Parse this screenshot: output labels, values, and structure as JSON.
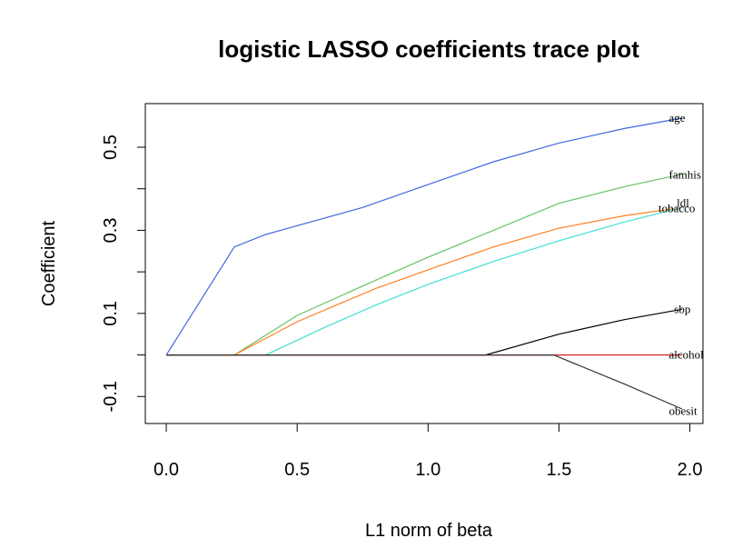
{
  "chart_data": {
    "type": "line",
    "title": "logistic LASSO coefficients trace plot",
    "xlabel": "L1 norm of beta",
    "ylabel": "Coefficient",
    "xlim": [
      -0.08,
      2.05
    ],
    "ylim": [
      -0.165,
      0.605
    ],
    "xticks": [
      0,
      0.5,
      1,
      1.5,
      2
    ],
    "xtick_labels": [
      "0.0",
      "0.5",
      "1.0",
      "1.5",
      "2.0"
    ],
    "yticks": [
      -0.1,
      0,
      0.1,
      0.2,
      0.3,
      0.4,
      0.5
    ],
    "ytick_labels": [
      "-0.1",
      "",
      "0.1",
      "",
      "0.3",
      "",
      "0.5"
    ],
    "grid": false,
    "legend": "none",
    "series": [
      {
        "name": "age",
        "color": "#4169e1",
        "points": [
          [
            0,
            0
          ],
          [
            0.26,
            0.26
          ],
          [
            0.38,
            0.29
          ],
          [
            0.75,
            0.355
          ],
          [
            1.0,
            0.41
          ],
          [
            1.25,
            0.465
          ],
          [
            1.5,
            0.51
          ],
          [
            1.75,
            0.545
          ],
          [
            1.97,
            0.57
          ]
        ]
      },
      {
        "name": "famhist",
        "color": "#66c266",
        "points": [
          [
            0,
            0
          ],
          [
            0.26,
            0
          ],
          [
            0.5,
            0.095
          ],
          [
            0.8,
            0.18
          ],
          [
            1.0,
            0.235
          ],
          [
            1.25,
            0.3
          ],
          [
            1.5,
            0.365
          ],
          [
            1.75,
            0.405
          ],
          [
            1.97,
            0.435
          ]
        ]
      },
      {
        "name": "ldl",
        "color": "#ff7f24",
        "points": [
          [
            0,
            0
          ],
          [
            0.26,
            0
          ],
          [
            0.5,
            0.08
          ],
          [
            0.8,
            0.16
          ],
          [
            1.0,
            0.205
          ],
          [
            1.25,
            0.26
          ],
          [
            1.5,
            0.305
          ],
          [
            1.75,
            0.335
          ],
          [
            1.97,
            0.355
          ]
        ]
      },
      {
        "name": "tobacco",
        "color": "#40e0d0",
        "points": [
          [
            0,
            0
          ],
          [
            0.38,
            0
          ],
          [
            0.6,
            0.065
          ],
          [
            0.8,
            0.12
          ],
          [
            1.0,
            0.17
          ],
          [
            1.25,
            0.225
          ],
          [
            1.5,
            0.275
          ],
          [
            1.75,
            0.32
          ],
          [
            1.97,
            0.355
          ]
        ]
      },
      {
        "name": "sbp",
        "color": "#000000",
        "points": [
          [
            0,
            0
          ],
          [
            1.22,
            0
          ],
          [
            1.5,
            0.05
          ],
          [
            1.75,
            0.085
          ],
          [
            1.97,
            0.11
          ]
        ]
      },
      {
        "name": "alcohol",
        "color": "#cd2626",
        "points": [
          [
            0,
            0
          ],
          [
            1.97,
            0
          ]
        ]
      },
      {
        "name": "obesity",
        "color": "#333333",
        "points": [
          [
            0,
            0
          ],
          [
            1.48,
            0
          ],
          [
            1.75,
            -0.07
          ],
          [
            1.97,
            -0.13
          ]
        ]
      }
    ],
    "labels": [
      {
        "text": "age",
        "x": 1.92,
        "y": 0.57
      },
      {
        "text": "famhis",
        "x": 1.92,
        "y": 0.433
      },
      {
        "text": "ldl",
        "x": 1.95,
        "y": 0.365
      },
      {
        "text": "tobacco",
        "x": 1.88,
        "y": 0.352
      },
      {
        "text": "sbp",
        "x": 1.94,
        "y": 0.11
      },
      {
        "text": "alcohol",
        "x": 1.92,
        "y": 0
      },
      {
        "text": "obesit",
        "x": 1.92,
        "y": -0.135
      }
    ]
  }
}
